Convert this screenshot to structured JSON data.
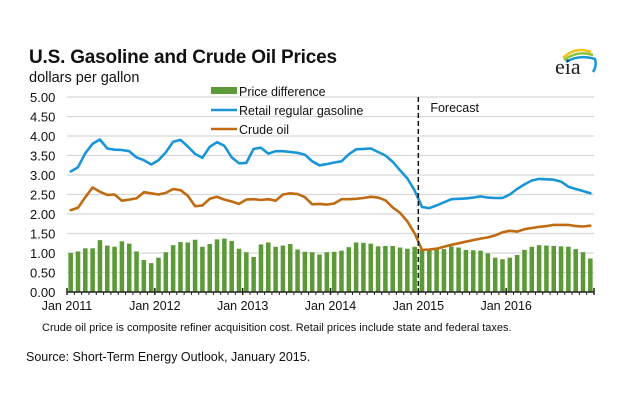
{
  "header": {
    "title": "U.S. Gasoline and Crude Oil Prices",
    "subtitle": "dollars per gallon",
    "logo": "eia"
  },
  "footer": {
    "note": "Crude oil price is composite refiner acquisition cost.  Retail prices include state and federal taxes.",
    "source": "Source: Short-Term Energy Outlook, January 2015."
  },
  "chart_data": {
    "type": "bar+line",
    "title": "U.S. Gasoline and Crude Oil Prices",
    "ylabel": "dollars per gallon",
    "xlabel": "",
    "ylim": [
      0,
      5
    ],
    "yticks": [
      "0.00",
      "0.50",
      "1.00",
      "1.50",
      "2.00",
      "2.50",
      "3.00",
      "3.50",
      "4.00",
      "4.50",
      "5.00"
    ],
    "ytick_values": [
      0,
      0.5,
      1,
      1.5,
      2,
      2.5,
      3,
      3.5,
      4,
      4.5,
      5
    ],
    "xticks": [
      "Jan 2011",
      "Jan 2012",
      "Jan 2013",
      "Jan 2014",
      "Jan 2015",
      "Jan 2016"
    ],
    "xtick_month_index": [
      0,
      12,
      24,
      36,
      48,
      60
    ],
    "months": 72,
    "start": "Jan 2011",
    "end": "Dec 2016",
    "grid": true,
    "legend_position": "top-center",
    "forecast_start_index": 48,
    "annotation": "Forecast",
    "colors": {
      "bars": "#5b9a36",
      "gasoline": "#1a96d8",
      "crude": "#c06b12",
      "grid": "#d8d8d8",
      "forecast_line": "#111111"
    },
    "series": [
      {
        "name": "Price difference",
        "kind": "bar",
        "values": [
          1.0,
          1.04,
          1.12,
          1.12,
          1.33,
          1.19,
          1.16,
          1.3,
          1.24,
          1.04,
          0.82,
          0.74,
          0.88,
          1.02,
          1.2,
          1.28,
          1.27,
          1.34,
          1.16,
          1.23,
          1.35,
          1.37,
          1.31,
          1.11,
          1.02,
          0.9,
          1.22,
          1.27,
          1.16,
          1.19,
          1.23,
          1.09,
          1.03,
          1.02,
          0.96,
          1.02,
          1.03,
          1.06,
          1.15,
          1.27,
          1.26,
          1.24,
          1.17,
          1.18,
          1.18,
          1.14,
          1.11,
          1.16,
          1.11,
          1.1,
          1.14,
          1.1,
          1.17,
          1.14,
          1.08,
          1.07,
          1.06,
          0.99,
          0.88,
          0.84,
          0.88,
          0.95,
          1.08,
          1.16,
          1.2,
          1.19,
          1.18,
          1.17,
          1.16,
          1.1,
          1.02,
          0.86
        ]
      },
      {
        "name": "Retail regular gasoline",
        "kind": "line",
        "values": [
          3.09,
          3.2,
          3.56,
          3.8,
          3.91,
          3.68,
          3.65,
          3.64,
          3.61,
          3.45,
          3.38,
          3.27,
          3.38,
          3.58,
          3.85,
          3.9,
          3.73,
          3.54,
          3.44,
          3.72,
          3.84,
          3.75,
          3.45,
          3.3,
          3.31,
          3.67,
          3.7,
          3.55,
          3.61,
          3.61,
          3.59,
          3.57,
          3.52,
          3.35,
          3.25,
          3.28,
          3.32,
          3.35,
          3.53,
          3.66,
          3.67,
          3.68,
          3.59,
          3.5,
          3.34,
          3.12,
          2.91,
          2.6,
          2.18,
          2.15,
          2.22,
          2.3,
          2.38,
          2.39,
          2.4,
          2.42,
          2.45,
          2.42,
          2.41,
          2.41,
          2.5,
          2.64,
          2.76,
          2.86,
          2.9,
          2.89,
          2.88,
          2.83,
          2.7,
          2.64,
          2.59,
          2.53
        ]
      },
      {
        "name": "Crude oil",
        "kind": "line",
        "values": [
          2.1,
          2.16,
          2.43,
          2.68,
          2.57,
          2.49,
          2.5,
          2.34,
          2.37,
          2.4,
          2.56,
          2.53,
          2.5,
          2.54,
          2.64,
          2.61,
          2.47,
          2.2,
          2.22,
          2.39,
          2.44,
          2.37,
          2.32,
          2.26,
          2.37,
          2.38,
          2.36,
          2.38,
          2.34,
          2.5,
          2.53,
          2.51,
          2.43,
          2.25,
          2.26,
          2.24,
          2.27,
          2.38,
          2.38,
          2.39,
          2.41,
          2.44,
          2.42,
          2.35,
          2.17,
          2.03,
          1.81,
          1.5,
          1.08,
          1.09,
          1.11,
          1.16,
          1.21,
          1.25,
          1.29,
          1.33,
          1.37,
          1.4,
          1.45,
          1.53,
          1.57,
          1.55,
          1.61,
          1.64,
          1.67,
          1.69,
          1.72,
          1.72,
          1.72,
          1.69,
          1.68,
          1.7
        ]
      }
    ]
  }
}
